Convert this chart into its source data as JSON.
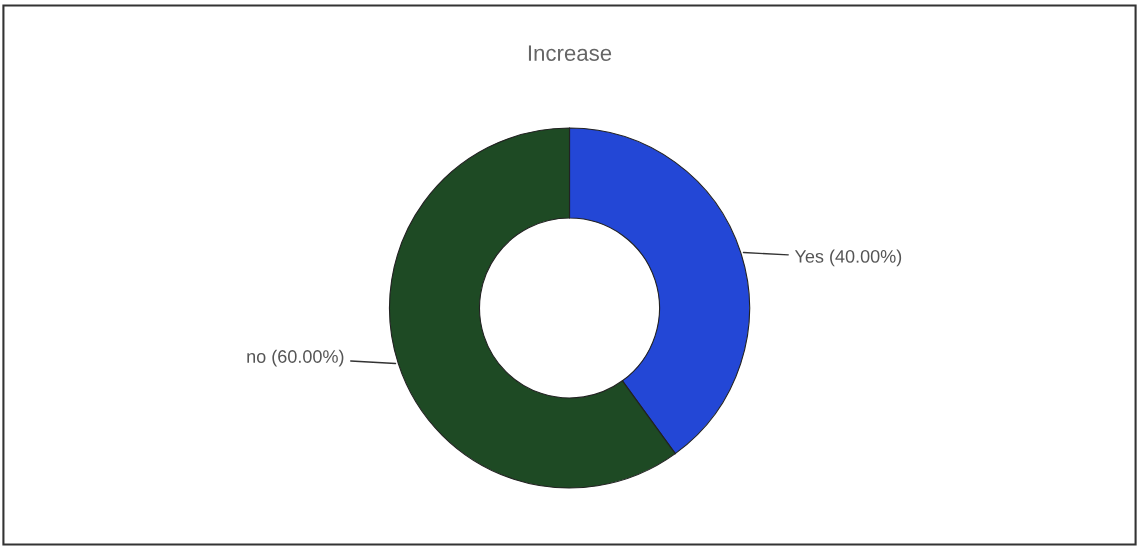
{
  "chart_data": {
    "type": "donut",
    "title": "Increase",
    "categories": [
      "Yes",
      "no"
    ],
    "values": [
      40,
      60
    ],
    "colors": [
      "#2347d6",
      "#1e4a24"
    ],
    "value_labels": [
      "(40.00%)",
      "(60.00%)"
    ],
    "legend": false
  }
}
